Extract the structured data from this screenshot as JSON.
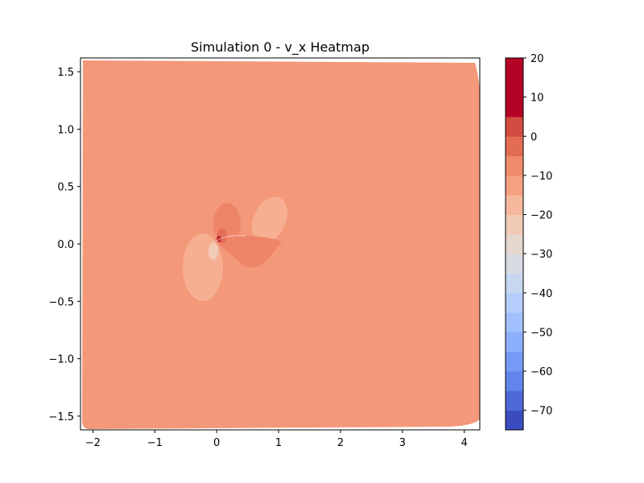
{
  "chart_data": {
    "type": "heatmap",
    "title": "Simulation 0 - v_x Heatmap",
    "xlabel": "",
    "ylabel": "",
    "xlim": [
      -2.2,
      4.25
    ],
    "ylim": [
      -1.62,
      1.62
    ],
    "x_ticks": [
      -2,
      -1,
      0,
      1,
      2,
      3,
      4
    ],
    "x_tick_labels": [
      "−2",
      "−1",
      "0",
      "1",
      "2",
      "3",
      "4"
    ],
    "y_ticks": [
      -1.5,
      -1.0,
      -0.5,
      0.0,
      0.5,
      1.0,
      1.5
    ],
    "y_tick_labels": [
      "−1.5",
      "−1.0",
      "−0.5",
      "0.0",
      "0.5",
      "1.0",
      "1.5"
    ],
    "colorbar": {
      "range": [
        -75,
        20
      ],
      "levels": [
        -75,
        -70,
        -65,
        -60,
        -55,
        -50,
        -45,
        -40,
        -35,
        -30,
        -25,
        -20,
        -15,
        -10,
        -5,
        0,
        5,
        10,
        15,
        20
      ],
      "colors": [
        "#3b4cc0",
        "#4f69d9",
        "#6384eb",
        "#779af7",
        "#8caffe",
        "#a1c0ff",
        "#b5cdfa",
        "#c7d7f0",
        "#d8dce2",
        "#e6d7cf",
        "#f2cbb7",
        "#f6b89c",
        "#f5a081",
        "#f08b6e",
        "#e36c55",
        "#d24b40",
        "#b40426",
        "#b40426",
        "#b40426"
      ],
      "ticks": [
        -70,
        -60,
        -50,
        -40,
        -30,
        -20,
        -10,
        0,
        10,
        20
      ],
      "tick_labels": [
        "−70",
        "−60",
        "−50",
        "−40",
        "−30",
        "−20",
        "−10",
        "0",
        "10",
        "20"
      ]
    },
    "background_level": [
      -5,
      0
    ],
    "background_color": "#f4987a",
    "features": [
      {
        "name": "positive-lobe-upper",
        "range": [
          0,
          5
        ],
        "color": "#ee8468"
      },
      {
        "name": "positive-lobe-lower",
        "range": [
          0,
          5
        ],
        "color": "#ee8468"
      },
      {
        "name": "negative-lobe-left",
        "range": [
          -10,
          -5
        ],
        "color": "#f7af91"
      },
      {
        "name": "negative-lobe-right",
        "range": [
          -10,
          -5
        ],
        "color": "#f7af91"
      },
      {
        "name": "core-peak",
        "range": [
          5,
          20
        ],
        "color": "#c0282d"
      }
    ]
  }
}
